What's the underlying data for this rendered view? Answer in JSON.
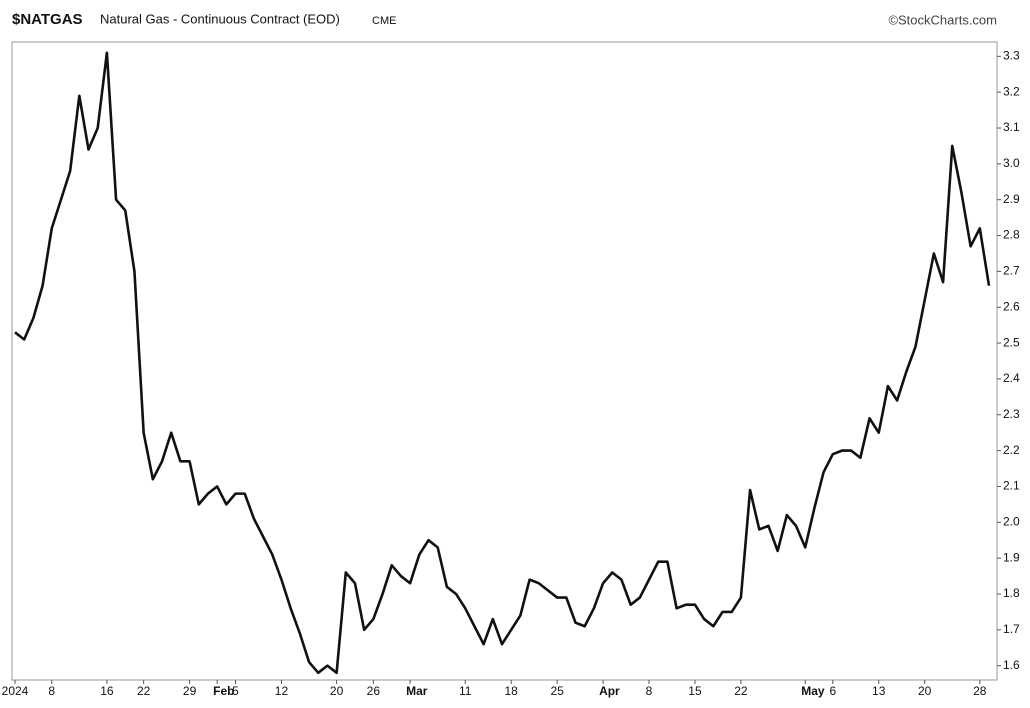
{
  "chart_data": {
    "type": "line",
    "symbol": "$NATGAS",
    "title": "Natural Gas - Continuous Contract (EOD)",
    "exchange": "CME",
    "source": "©StockCharts.com",
    "categories": [
      "2024",
      null,
      null,
      null,
      "8",
      null,
      null,
      null,
      null,
      null,
      "16",
      null,
      null,
      null,
      "22",
      null,
      null,
      null,
      null,
      "29",
      null,
      null,
      "Feb",
      null,
      "5",
      null,
      null,
      null,
      null,
      "12",
      null,
      null,
      null,
      null,
      null,
      "20",
      null,
      null,
      null,
      "26",
      null,
      null,
      null,
      "Mar",
      null,
      null,
      null,
      null,
      null,
      "11",
      null,
      null,
      null,
      null,
      "18",
      null,
      null,
      null,
      null,
      "25",
      null,
      null,
      null,
      null,
      "Apr",
      null,
      null,
      null,
      null,
      "8",
      null,
      null,
      null,
      null,
      "15",
      null,
      null,
      null,
      null,
      "22",
      null,
      null,
      null,
      null,
      null,
      null,
      "May",
      null,
      null,
      "6",
      null,
      null,
      null,
      null,
      "13",
      null,
      null,
      null,
      null,
      "20",
      null,
      null,
      null,
      null,
      null,
      "28",
      null
    ],
    "series": [
      {
        "name": "$NATGAS",
        "color": "#111111",
        "values": [
          2.53,
          2.51,
          2.57,
          2.66,
          2.82,
          2.9,
          2.98,
          3.19,
          3.04,
          3.1,
          3.31,
          2.9,
          2.87,
          2.7,
          2.25,
          2.12,
          2.17,
          2.25,
          2.17,
          2.17,
          2.05,
          2.08,
          2.1,
          2.05,
          2.08,
          2.08,
          2.01,
          1.96,
          1.91,
          1.84,
          1.76,
          1.69,
          1.61,
          1.58,
          1.6,
          1.58,
          1.86,
          1.83,
          1.7,
          1.73,
          1.8,
          1.88,
          1.85,
          1.83,
          1.91,
          1.95,
          1.93,
          1.82,
          1.8,
          1.76,
          1.71,
          1.66,
          1.73,
          1.66,
          1.7,
          1.74,
          1.84,
          1.83,
          1.81,
          1.79,
          1.79,
          1.72,
          1.71,
          1.76,
          1.83,
          1.86,
          1.84,
          1.77,
          1.79,
          1.84,
          1.89,
          1.89,
          1.76,
          1.77,
          1.77,
          1.73,
          1.71,
          1.75,
          1.75,
          1.79,
          2.09,
          1.98,
          1.99,
          1.92,
          2.02,
          1.99,
          1.93,
          2.04,
          2.14,
          2.19,
          2.2,
          2.2,
          2.18,
          2.29,
          2.25,
          2.38,
          2.34,
          2.42,
          2.49,
          2.62,
          2.75,
          2.67,
          3.05,
          2.92,
          2.77,
          2.82,
          2.66
        ]
      }
    ],
    "ylim": [
      1.56,
      3.34
    ],
    "yticks": [
      1.6,
      1.7,
      1.8,
      1.9,
      {
        "value": 2,
        "label": "2.0"
      },
      2.1,
      2.2,
      2.3,
      2.4,
      2.5,
      2.6,
      2.7,
      2.8,
      2.9,
      {
        "value": 3,
        "label": "3.0"
      },
      3.1,
      3.2,
      3.3
    ],
    "grid": false
  }
}
